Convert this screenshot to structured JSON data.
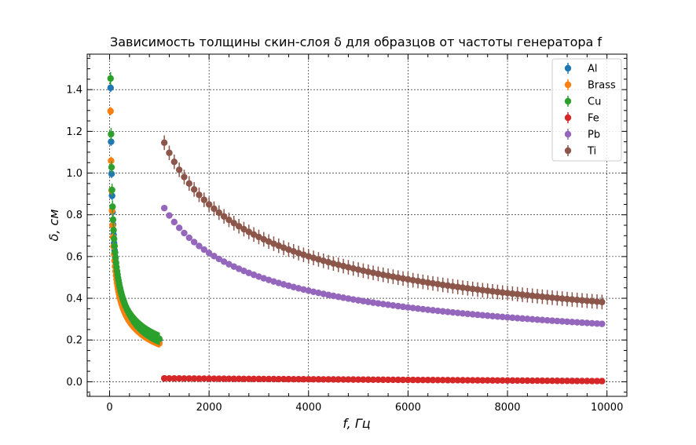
{
  "chart_data": {
    "type": "scatter",
    "title": "Зависимость толщины скин-слоя δ для образцов от частоты генератора f",
    "xlabel": "f, Гц",
    "ylabel": "δ, см",
    "xlim": [
      -450,
      10400
    ],
    "ylim": [
      -0.07,
      1.57
    ],
    "xticks": [
      0,
      2000,
      4000,
      6000,
      8000,
      10000
    ],
    "yticks": [
      0.0,
      0.2,
      0.4,
      0.6,
      0.8,
      1.0,
      1.2,
      1.4
    ],
    "xtick_labels": [
      "0",
      "2000",
      "4000",
      "6000",
      "8000",
      "10000"
    ],
    "ytick_labels": [
      "0.0",
      "0.2",
      "0.4",
      "0.6",
      "0.8",
      "1.0",
      "1.2",
      "1.4"
    ],
    "grid": true,
    "legend_position": "top-right",
    "series": [
      {
        "name": "Al",
        "color": "#1f77b4",
        "model": "power",
        "k": 6.3,
        "f_start": 20,
        "f_end": 1000,
        "step": 10,
        "err": 0.02
      },
      {
        "name": "Brass",
        "color": "#ff7f0e",
        "model": "power",
        "k": 5.8,
        "f_start": 20,
        "f_end": 1000,
        "step": 10,
        "err": 0.02
      },
      {
        "name": "Cu",
        "color": "#2ca02c",
        "model": "power",
        "k": 6.5,
        "f_start": 20,
        "f_end": 1000,
        "step": 10,
        "err": 0.03
      },
      {
        "name": "Fe",
        "color": "#d62728",
        "model": "linear",
        "y_start": 0.016,
        "y_end": 0.003,
        "f_start": 1100,
        "f_end": 9900,
        "step": 100,
        "err": 0.005
      },
      {
        "name": "Pb",
        "color": "#9467bd",
        "model": "power",
        "k": 27.6,
        "f_start": 1100,
        "f_end": 9900,
        "step": 100,
        "err": 0.015
      },
      {
        "name": "Ti",
        "color": "#8c564b",
        "model": "power",
        "k": 38.0,
        "f_start": 1100,
        "f_end": 9900,
        "step": 100,
        "err": 0.035
      }
    ]
  }
}
